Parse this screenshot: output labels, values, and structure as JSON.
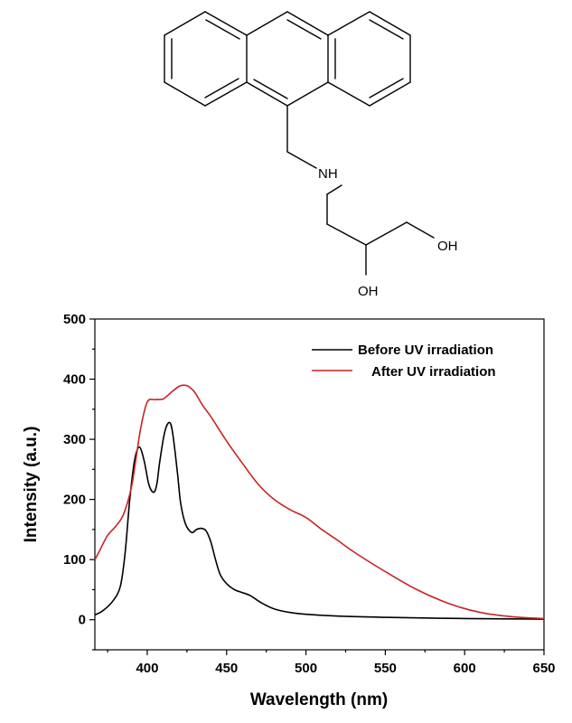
{
  "molecule": {
    "atom_labels": {
      "amine": "NH",
      "oh_terminal": "OH",
      "oh_secondary": "OH"
    }
  },
  "chart_data": {
    "type": "line",
    "xlabel": "Wavelength (nm)",
    "ylabel": "Intensity (a.u.)",
    "xlim": [
      367,
      650
    ],
    "ylim": [
      -50,
      500
    ],
    "x_ticks": [
      400,
      450,
      500,
      550,
      600,
      650
    ],
    "y_ticks": [
      0,
      100,
      200,
      300,
      400,
      500
    ],
    "grid": false,
    "legend_position": "top-right",
    "series": [
      {
        "name": "Before UV irradiation",
        "color": "#000000",
        "x": [
          367,
          372,
          378,
          383,
          386,
          389,
          392,
          395,
          398,
          401,
          404,
          406,
          408,
          411,
          414,
          416,
          419,
          421,
          424,
          428,
          431,
          434,
          437,
          440,
          443,
          446,
          450,
          455,
          460,
          465,
          472,
          480,
          490,
          500,
          520,
          550,
          600,
          650
        ],
        "y": [
          8,
          15,
          30,
          55,
          110,
          200,
          265,
          287,
          265,
          225,
          212,
          225,
          265,
          312,
          328,
          310,
          245,
          195,
          160,
          145,
          150,
          152,
          148,
          130,
          100,
          75,
          60,
          50,
          45,
          40,
          28,
          18,
          12,
          9,
          6,
          4,
          2,
          1
        ]
      },
      {
        "name": "After UV irradiation",
        "color": "#cc2222",
        "x": [
          367,
          370,
          375,
          380,
          385,
          390,
          393,
          396,
          400,
          405,
          410,
          415,
          420,
          423,
          426,
          430,
          435,
          440,
          450,
          460,
          470,
          480,
          490,
          500,
          510,
          520,
          530,
          550,
          570,
          590,
          610,
          630,
          650
        ],
        "y": [
          100,
          115,
          140,
          155,
          175,
          220,
          270,
          320,
          362,
          366,
          367,
          378,
          388,
          390,
          388,
          378,
          356,
          338,
          297,
          260,
          225,
          200,
          183,
          170,
          150,
          132,
          113,
          80,
          50,
          27,
          12,
          5,
          2
        ]
      }
    ]
  }
}
